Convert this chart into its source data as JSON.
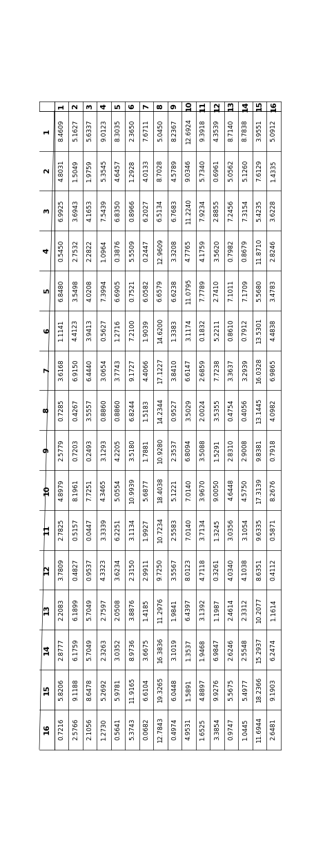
{
  "col_headers": [
    "1",
    "2",
    "3",
    "4",
    "5",
    "6",
    "7",
    "8",
    "9",
    "10",
    "11",
    "12",
    "13",
    "14",
    "15",
    "16"
  ],
  "row_headers": [
    "1",
    "2",
    "3",
    "4",
    "5",
    "6",
    "7",
    "8",
    "9",
    "10",
    "11",
    "12",
    "13",
    "14",
    "15",
    "16"
  ],
  "table_data": [
    [
      8.4609,
      5.1627,
      5.6337,
      9.0123,
      8.3035,
      2.365,
      7.6711,
      5.045,
      8.2367,
      12.6924,
      9.3918,
      4.3539,
      8.714,
      8.7838,
      3.9551,
      5.0912
    ],
    [
      4.8031,
      1.5049,
      1.9759,
      5.3545,
      4.6457,
      1.2928,
      4.0133,
      8.7028,
      4.5789,
      9.0346,
      5.734,
      0.6961,
      5.0562,
      5.126,
      7.6129,
      1.4335
    ],
    [
      6.9925,
      3.6943,
      4.1653,
      7.5439,
      6.835,
      0.8966,
      6.2027,
      6.5134,
      6.7683,
      11.224,
      7.9234,
      2.8855,
      7.2456,
      7.3154,
      5.4235,
      3.6228
    ],
    [
      0.545,
      2.7532,
      2.2822,
      1.0964,
      0.3876,
      5.5509,
      0.2447,
      12.9609,
      3.3208,
      4.7765,
      4.1759,
      3.562,
      0.7982,
      0.8679,
      11.871,
      2.8246
    ],
    [
      6.848,
      3.5498,
      4.0208,
      7.3994,
      6.6905,
      0.7521,
      6.0582,
      6.6579,
      6.6238,
      11.0795,
      7.7789,
      2.741,
      7.1011,
      7.1709,
      5.568,
      3.4783
    ],
    [
      1.1141,
      4.4123,
      3.9413,
      0.5627,
      1.2716,
      7.21,
      1.9039,
      14.62,
      1.3383,
      3.1174,
      0.1832,
      5.2211,
      0.861,
      0.7912,
      13.5301,
      4.4838
    ],
    [
      3.6168,
      6.915,
      6.444,
      3.0654,
      3.7743,
      9.1727,
      4.4066,
      17.1227,
      3.841,
      6.6147,
      2.6859,
      7.7238,
      3.3637,
      3.2939,
      16.0328,
      6.9865
    ],
    [
      0.7285,
      0.4267,
      3.5557,
      0.886,
      0.886,
      6.8244,
      1.5183,
      14.2344,
      0.9527,
      3.5029,
      2.0024,
      3.5355,
      0.4754,
      0.4056,
      13.1445,
      4.0982
    ],
    [
      2.5779,
      0.7203,
      0.2493,
      3.1293,
      4.2205,
      3.518,
      1.7881,
      10.928,
      2.3537,
      6.8094,
      3.5088,
      1.5291,
      2.831,
      2.9008,
      9.8381,
      0.7918
    ],
    [
      4.8979,
      8.1961,
      7.7251,
      4.3465,
      5.0554,
      10.9939,
      5.6877,
      18.4038,
      5.1221,
      7.014,
      3.967,
      9.005,
      4.6448,
      4.575,
      17.3139,
      8.2676
    ],
    [
      2.7825,
      0.5157,
      0.0447,
      3.3339,
      6.2251,
      3.1134,
      1.9927,
      10.7234,
      2.5583,
      7.014,
      3.7134,
      1.3245,
      3.0356,
      3.1054,
      9.6335,
      0.5871
    ],
    [
      3.7809,
      0.4827,
      0.9537,
      4.3323,
      3.6234,
      2.315,
      2.9911,
      9.725,
      3.5567,
      8.0123,
      4.7118,
      0.3261,
      4.034,
      4.1038,
      8.6351,
      0.4112
    ],
    [
      2.2083,
      6.1899,
      5.7049,
      2.7597,
      2.0508,
      3.8876,
      1.4185,
      11.2976,
      1.9841,
      6.4397,
      3.1392,
      1.1987,
      2.4614,
      2.3312,
      10.2077,
      1.1614
    ],
    [
      2.8777,
      6.1759,
      5.7049,
      2.3263,
      3.0352,
      8.9736,
      3.6675,
      16.3836,
      3.1019,
      1.3537,
      1.9468,
      6.9847,
      2.6246,
      2.5548,
      15.2937,
      6.2474
    ],
    [
      5.8206,
      9.1188,
      8.6478,
      5.2692,
      5.9781,
      11.9165,
      6.6104,
      19.3265,
      6.0448,
      1.5891,
      4.8897,
      9.9276,
      5.5675,
      5.4977,
      18.2366,
      9.1903
    ],
    [
      0.7216,
      2.5766,
      2.1056,
      1.273,
      0.5641,
      5.3743,
      0.0682,
      12.7843,
      0.4974,
      4.9531,
      1.6525,
      3.3854,
      0.9747,
      1.0445,
      11.6944,
      2.6481
    ]
  ],
  "font_size": 6.5,
  "header_font_size": 8.0,
  "bg_color": "white",
  "line_color": "black",
  "line_width": 0.5
}
